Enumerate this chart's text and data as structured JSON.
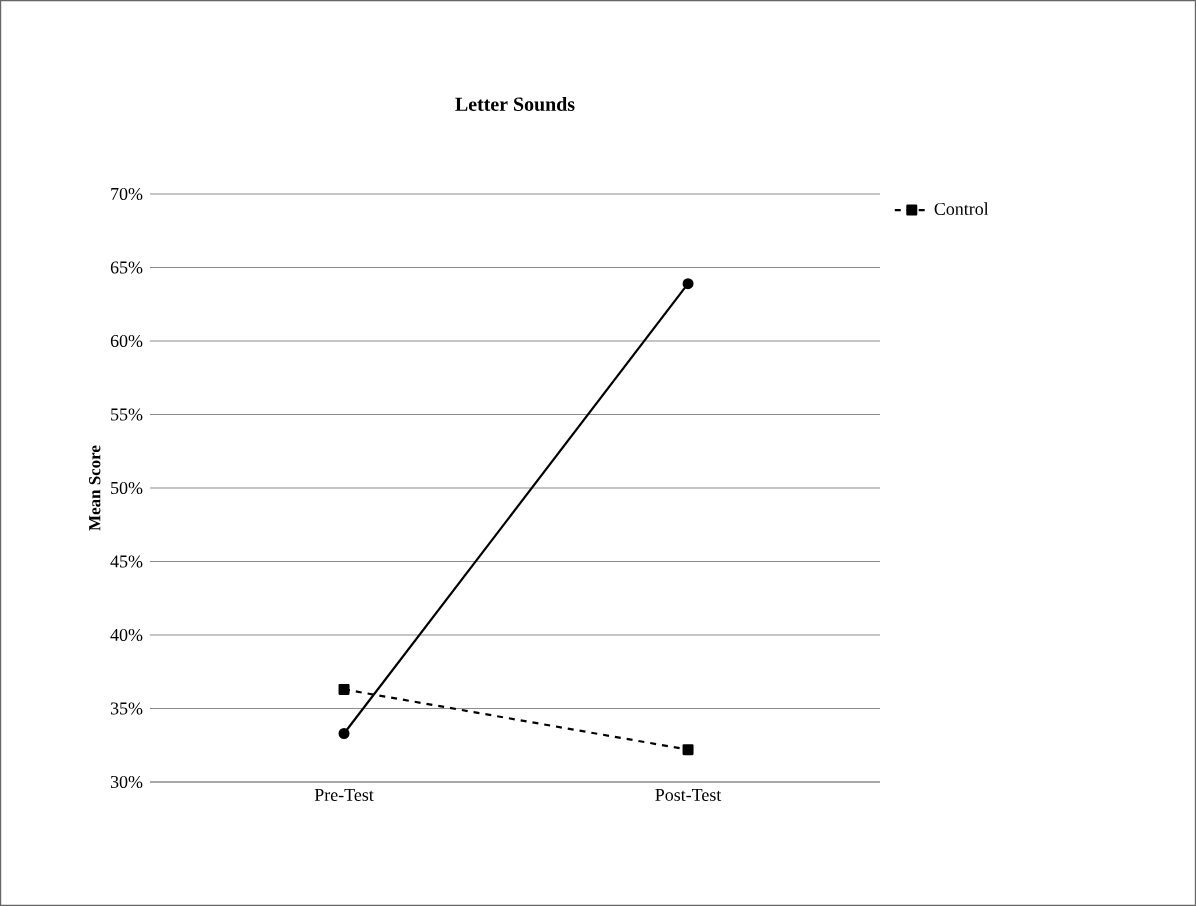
{
  "chart_data": {
    "type": "line",
    "title": "Letter Sounds",
    "ylabel": "Mean Score",
    "categories": [
      "Pre-Test",
      "Post-Test"
    ],
    "series": [
      {
        "color": "#000000",
        "values": [
          33.3,
          63.9
        ],
        "marker": "circle",
        "line_style": "solid"
      },
      {
        "name": "Control",
        "color": "#000000",
        "values": [
          36.3,
          32.2
        ],
        "marker": "square",
        "line_style": "dashed"
      }
    ],
    "ylim": [
      30,
      70
    ],
    "yticks": [
      {
        "value": 30,
        "label": "30%"
      },
      {
        "value": 35,
        "label": "35%"
      },
      {
        "value": 40,
        "label": "40%"
      },
      {
        "value": 45,
        "label": "45%"
      },
      {
        "value": 50,
        "label": "50%"
      },
      {
        "value": 55,
        "label": "55%"
      },
      {
        "value": 60,
        "label": "60%"
      },
      {
        "value": 65,
        "label": "65%"
      },
      {
        "value": 70,
        "label": "70%"
      }
    ],
    "grid": "y",
    "legend": "top right"
  }
}
